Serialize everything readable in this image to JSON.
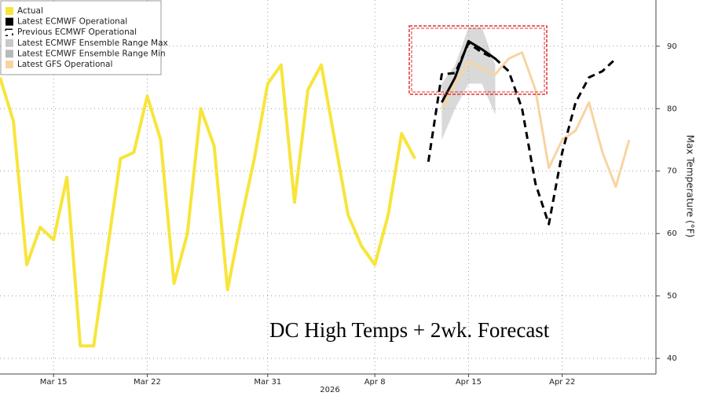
{
  "chart_data": {
    "type": "line",
    "annotation": "DC High Temps + 2wk. Forecast",
    "xlabel": "2026",
    "ylabel": "Max Temperature (°F)",
    "xlim": [
      "2026-03-11",
      "2026-04-29"
    ],
    "xticks": [
      {
        "value": "2026-03-15",
        "label": "Mar 15"
      },
      {
        "value": "2026-03-22",
        "label": "Mar 22"
      },
      {
        "value": "2026-03-31",
        "label": "Mar 31"
      },
      {
        "value": "2026-04-08",
        "label": "Apr 8"
      },
      {
        "value": "2026-04-15",
        "label": "Apr 15"
      },
      {
        "value": "2026-04-22",
        "label": "Apr 22"
      }
    ],
    "ylim": [
      37.5,
      97.4
    ],
    "yticks": [
      40,
      50,
      60,
      70,
      80,
      90
    ],
    "grid": true,
    "legend": "upper left",
    "series": [
      {
        "name": "Actual",
        "color": "#f7e53b",
        "x": [
          "2026-03-11",
          "2026-03-12",
          "2026-03-13",
          "2026-03-14",
          "2026-03-15",
          "2026-03-16",
          "2026-03-17",
          "2026-03-18",
          "2026-03-19",
          "2026-03-20",
          "2026-03-21",
          "2026-03-22",
          "2026-03-23",
          "2026-03-24",
          "2026-03-25",
          "2026-03-26",
          "2026-03-27",
          "2026-03-28",
          "2026-03-29",
          "2026-03-30",
          "2026-03-31",
          "2026-04-01",
          "2026-04-02",
          "2026-04-03",
          "2026-04-04",
          "2026-04-05",
          "2026-04-06",
          "2026-04-07",
          "2026-04-08",
          "2026-04-09",
          "2026-04-10",
          "2026-04-11"
        ],
        "values": [
          85,
          78,
          55,
          61,
          59,
          69,
          42,
          42,
          57,
          72,
          73,
          82,
          75,
          52,
          60,
          80,
          74,
          51,
          62,
          72,
          84,
          87,
          65,
          83,
          87,
          75,
          63,
          58,
          55,
          63,
          76,
          72
        ]
      },
      {
        "name": "Latest ECMWF Operational",
        "color": "#000000",
        "x": [
          "2026-04-13",
          "2026-04-14",
          "2026-04-15",
          "2026-04-16",
          "2026-04-17"
        ],
        "values": [
          81,
          85,
          90.8,
          89.5,
          88
        ]
      },
      {
        "name": "Previous ECMWF Operational",
        "color": "#000000",
        "dashed": true,
        "x": [
          "2026-04-12",
          "2026-04-13",
          "2026-04-14",
          "2026-04-15",
          "2026-04-16",
          "2026-04-17",
          "2026-04-18",
          "2026-04-19",
          "2026-04-20",
          "2026-04-21",
          "2026-04-22",
          "2026-04-23",
          "2026-04-24",
          "2026-04-25",
          "2026-04-26"
        ],
        "values": [
          71.5,
          85.5,
          85.7,
          90.5,
          89,
          88,
          86,
          80,
          68,
          61.5,
          73,
          81,
          85,
          86,
          88
        ]
      },
      {
        "name": "Latest ECMWF Ensemble Range Max",
        "color": "#c9c9c9",
        "band": true,
        "x": [
          "2026-04-13",
          "2026-04-14",
          "2026-04-15",
          "2026-04-16",
          "2026-04-17"
        ],
        "values": [
          84,
          87,
          93,
          93,
          87
        ]
      },
      {
        "name": "Latest ECMWF Ensemble Range Min",
        "color": "#b9b9b9",
        "band": true,
        "x": [
          "2026-04-13",
          "2026-04-14",
          "2026-04-15",
          "2026-04-16",
          "2026-04-17"
        ],
        "values": [
          75,
          80,
          84,
          84,
          79
        ]
      },
      {
        "name": "Latest GFS Operational",
        "color": "#f8d4a2",
        "x": [
          "2026-04-13",
          "2026-04-14",
          "2026-04-15",
          "2026-04-16",
          "2026-04-17",
          "2026-04-18",
          "2026-04-19",
          "2026-04-20",
          "2026-04-21",
          "2026-04-22",
          "2026-04-23",
          "2026-04-24",
          "2026-04-25",
          "2026-04-26",
          "2026-04-27"
        ],
        "values": [
          80,
          84,
          87.5,
          86.5,
          85.5,
          88,
          89,
          83,
          70.5,
          75,
          76.5,
          81,
          73,
          67.5,
          75
        ]
      }
    ]
  }
}
